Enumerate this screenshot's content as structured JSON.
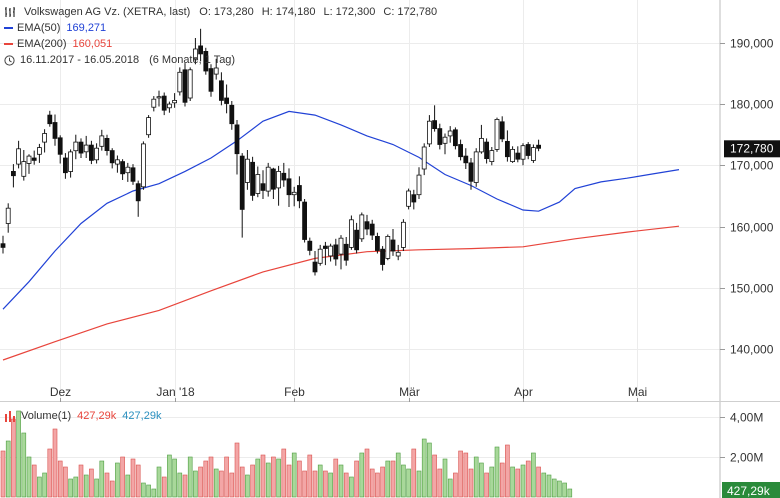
{
  "chart_data": {
    "type": "candlestick",
    "title": "Volkswagen AG Vz. (XETRA, last)",
    "ohlc_summary": {
      "O_label": "O:",
      "O": "173,280",
      "H_label": "H:",
      "H": "174,180",
      "L_label": "L:",
      "L": "172,300",
      "C_label": "C:",
      "C": "172,780"
    },
    "period": "16.11.2017 - 16.05.2018",
    "period_note": "(6 Monate, 1 Tag)",
    "last_price_label": "172,780",
    "ylim": [
      132,
      197
    ],
    "y_ticks": [
      {
        "value": 140,
        "label": "140,000"
      },
      {
        "value": 150,
        "label": "150,000"
      },
      {
        "value": 160,
        "label": "160,000"
      },
      {
        "value": 170,
        "label": "170,000"
      },
      {
        "value": 180,
        "label": "180,000"
      },
      {
        "value": 190,
        "label": "190,000"
      }
    ],
    "x_ticks": [
      {
        "index": 11,
        "label": "Dez"
      },
      {
        "index": 33,
        "label": "Jan '18"
      },
      {
        "index": 56,
        "label": "Feb"
      },
      {
        "index": 78,
        "label": "Mär"
      },
      {
        "index": 100,
        "label": "Apr"
      },
      {
        "index": 122,
        "label": "Mai"
      }
    ],
    "ema50": {
      "name": "EMA(50)",
      "last": "169,271",
      "color": "#2142d6",
      "points": [
        [
          0,
          146.5
        ],
        [
          5,
          151
        ],
        [
          10,
          156
        ],
        [
          15,
          160.5
        ],
        [
          20,
          163.8
        ],
        [
          25,
          165.8
        ],
        [
          30,
          167
        ],
        [
          35,
          169
        ],
        [
          40,
          171.2
        ],
        [
          45,
          174
        ],
        [
          50,
          177.2
        ],
        [
          55,
          178.8
        ],
        [
          60,
          178.2
        ],
        [
          65,
          176.6
        ],
        [
          70,
          174.8
        ],
        [
          75,
          173.4
        ],
        [
          80,
          171.3
        ],
        [
          85,
          168.5
        ],
        [
          90,
          166.7
        ],
        [
          95,
          164.5
        ],
        [
          100,
          162.7
        ],
        [
          103,
          162.5
        ],
        [
          107,
          164
        ],
        [
          110,
          166.2
        ],
        [
          115,
          167.3
        ],
        [
          120,
          167.9
        ],
        [
          125,
          168.6
        ],
        [
          130,
          169.3
        ]
      ]
    },
    "ema200": {
      "name": "EMA(200)",
      "last": "160,051",
      "color": "#e8453c",
      "points": [
        [
          0,
          138.2
        ],
        [
          10,
          141.2
        ],
        [
          20,
          144.1
        ],
        [
          30,
          146.3
        ],
        [
          40,
          149.5
        ],
        [
          50,
          152.6
        ],
        [
          60,
          154.8
        ],
        [
          70,
          155.9
        ],
        [
          80,
          156.2
        ],
        [
          90,
          156.4
        ],
        [
          100,
          156.7
        ],
        [
          110,
          158
        ],
        [
          120,
          159.1
        ],
        [
          130,
          160.05
        ]
      ]
    },
    "candles": [
      {
        "o": 157.2,
        "h": 158.5,
        "l": 155.6,
        "c": 156.6
      },
      {
        "o": 160.5,
        "h": 163.8,
        "l": 159.0,
        "c": 163.0
      },
      {
        "o": 169.0,
        "h": 170.2,
        "l": 166.4,
        "c": 168.3
      },
      {
        "o": 170.2,
        "h": 174.0,
        "l": 169.5,
        "c": 172.7
      },
      {
        "o": 168.2,
        "h": 172.5,
        "l": 167.5,
        "c": 170.6
      },
      {
        "o": 170.3,
        "h": 171.8,
        "l": 168.6,
        "c": 171.5
      },
      {
        "o": 171.2,
        "h": 172.4,
        "l": 170.1,
        "c": 170.8
      },
      {
        "o": 171.8,
        "h": 173.5,
        "l": 170.4,
        "c": 172.9
      },
      {
        "o": 173.8,
        "h": 175.9,
        "l": 172.1,
        "c": 175.2
      },
      {
        "o": 178.2,
        "h": 178.9,
        "l": 176.3,
        "c": 176.8
      },
      {
        "o": 177.0,
        "h": 178.3,
        "l": 173.2,
        "c": 174.4
      },
      {
        "o": 174.5,
        "h": 174.9,
        "l": 170.3,
        "c": 171.8
      },
      {
        "o": 171.2,
        "h": 172.0,
        "l": 167.8,
        "c": 168.8
      },
      {
        "o": 169.0,
        "h": 172.6,
        "l": 168.0,
        "c": 172.2
      },
      {
        "o": 172.4,
        "h": 175.0,
        "l": 171.0,
        "c": 173.8
      },
      {
        "o": 173.8,
        "h": 174.4,
        "l": 171.2,
        "c": 172.0
      },
      {
        "o": 172.2,
        "h": 174.8,
        "l": 171.2,
        "c": 173.3
      },
      {
        "o": 173.3,
        "h": 174.0,
        "l": 170.2,
        "c": 170.8
      },
      {
        "o": 170.9,
        "h": 173.6,
        "l": 170.3,
        "c": 172.8
      },
      {
        "o": 173.1,
        "h": 175.8,
        "l": 172.4,
        "c": 174.8
      },
      {
        "o": 174.4,
        "h": 175.0,
        "l": 171.6,
        "c": 172.4
      },
      {
        "o": 172.4,
        "h": 172.8,
        "l": 169.5,
        "c": 170.4
      },
      {
        "o": 170.2,
        "h": 171.6,
        "l": 168.8,
        "c": 170.9
      },
      {
        "o": 170.6,
        "h": 171.0,
        "l": 167.6,
        "c": 168.6
      },
      {
        "o": 168.8,
        "h": 170.4,
        "l": 167.3,
        "c": 169.7
      },
      {
        "o": 169.6,
        "h": 170.2,
        "l": 166.8,
        "c": 167.4
      },
      {
        "o": 167.0,
        "h": 167.5,
        "l": 161.6,
        "c": 164.2
      },
      {
        "o": 166.5,
        "h": 173.9,
        "l": 166.0,
        "c": 173.5
      },
      {
        "o": 175.0,
        "h": 178.2,
        "l": 174.5,
        "c": 177.8
      },
      {
        "o": 179.5,
        "h": 181.3,
        "l": 178.8,
        "c": 180.8
      },
      {
        "o": 181.0,
        "h": 182.2,
        "l": 179.6,
        "c": 181.2
      },
      {
        "o": 181.3,
        "h": 181.9,
        "l": 178.2,
        "c": 179.0
      },
      {
        "o": 179.4,
        "h": 180.4,
        "l": 178.6,
        "c": 180.0
      },
      {
        "o": 180.2,
        "h": 181.8,
        "l": 179.4,
        "c": 180.6
      },
      {
        "o": 182.0,
        "h": 186.0,
        "l": 181.4,
        "c": 185.2
      },
      {
        "o": 185.6,
        "h": 186.7,
        "l": 179.6,
        "c": 180.3
      },
      {
        "o": 181.0,
        "h": 186.0,
        "l": 180.5,
        "c": 185.6
      },
      {
        "o": 187.4,
        "h": 190.8,
        "l": 186.5,
        "c": 189.0
      },
      {
        "o": 189.5,
        "h": 192.3,
        "l": 187.0,
        "c": 188.2
      },
      {
        "o": 188.6,
        "h": 189.2,
        "l": 184.8,
        "c": 185.4
      },
      {
        "o": 185.8,
        "h": 186.5,
        "l": 181.2,
        "c": 182.1
      },
      {
        "o": 184.9,
        "h": 187.4,
        "l": 184.0,
        "c": 185.9
      },
      {
        "o": 183.8,
        "h": 185.2,
        "l": 179.8,
        "c": 180.6
      },
      {
        "o": 181.0,
        "h": 183.2,
        "l": 178.5,
        "c": 180.1
      },
      {
        "o": 179.8,
        "h": 180.5,
        "l": 175.8,
        "c": 176.8
      },
      {
        "o": 176.6,
        "h": 177.4,
        "l": 168.5,
        "c": 171.9
      },
      {
        "o": 171.5,
        "h": 172.0,
        "l": 158.2,
        "c": 162.8
      },
      {
        "o": 167.2,
        "h": 172.5,
        "l": 166.0,
        "c": 171.0
      },
      {
        "o": 170.5,
        "h": 171.4,
        "l": 164.2,
        "c": 165.1
      },
      {
        "o": 165.4,
        "h": 169.8,
        "l": 164.8,
        "c": 168.5
      },
      {
        "o": 167.0,
        "h": 169.2,
        "l": 164.5,
        "c": 165.9
      },
      {
        "o": 165.8,
        "h": 170.4,
        "l": 164.9,
        "c": 169.7
      },
      {
        "o": 169.4,
        "h": 169.6,
        "l": 164.5,
        "c": 166.1
      },
      {
        "o": 166.3,
        "h": 169.9,
        "l": 163.4,
        "c": 169.0
      },
      {
        "o": 168.7,
        "h": 170.4,
        "l": 166.5,
        "c": 167.6
      },
      {
        "o": 167.8,
        "h": 169.5,
        "l": 163.2,
        "c": 165.2
      },
      {
        "o": 165.2,
        "h": 166.5,
        "l": 163.3,
        "c": 165.6
      },
      {
        "o": 166.7,
        "h": 168.2,
        "l": 163.0,
        "c": 164.2
      },
      {
        "o": 164.0,
        "h": 164.5,
        "l": 157.4,
        "c": 157.9
      },
      {
        "o": 157.6,
        "h": 158.2,
        "l": 155.3,
        "c": 156.1
      },
      {
        "o": 154.2,
        "h": 156.0,
        "l": 152.0,
        "c": 152.6
      },
      {
        "o": 154.0,
        "h": 157.0,
        "l": 153.6,
        "c": 156.3
      },
      {
        "o": 156.8,
        "h": 157.5,
        "l": 153.7,
        "c": 156.4
      },
      {
        "o": 155.2,
        "h": 157.2,
        "l": 154.3,
        "c": 156.8
      },
      {
        "o": 157.0,
        "h": 158.0,
        "l": 153.6,
        "c": 154.7
      },
      {
        "o": 155.5,
        "h": 158.6,
        "l": 153.0,
        "c": 158.1
      },
      {
        "o": 157.1,
        "h": 158.3,
        "l": 153.6,
        "c": 154.5
      },
      {
        "o": 156.6,
        "h": 161.8,
        "l": 156.2,
        "c": 161.1
      },
      {
        "o": 159.4,
        "h": 160.6,
        "l": 155.6,
        "c": 156.2
      },
      {
        "o": 158.0,
        "h": 162.3,
        "l": 157.5,
        "c": 161.9
      },
      {
        "o": 160.8,
        "h": 161.9,
        "l": 158.6,
        "c": 159.6
      },
      {
        "o": 160.4,
        "h": 161.1,
        "l": 157.8,
        "c": 158.6
      },
      {
        "o": 158.4,
        "h": 159.0,
        "l": 155.6,
        "c": 156.1
      },
      {
        "o": 156.3,
        "h": 156.8,
        "l": 152.8,
        "c": 153.8
      },
      {
        "o": 154.8,
        "h": 158.7,
        "l": 154.5,
        "c": 158.4
      },
      {
        "o": 157.8,
        "h": 159.6,
        "l": 155.2,
        "c": 156.0
      },
      {
        "o": 155.2,
        "h": 157.0,
        "l": 154.5,
        "c": 155.8
      },
      {
        "o": 156.6,
        "h": 161.2,
        "l": 156.0,
        "c": 160.7
      },
      {
        "o": 163.3,
        "h": 166.2,
        "l": 162.8,
        "c": 165.8
      },
      {
        "o": 165.2,
        "h": 166.0,
        "l": 162.8,
        "c": 164.0
      },
      {
        "o": 165.2,
        "h": 169.7,
        "l": 164.5,
        "c": 168.4
      },
      {
        "o": 169.4,
        "h": 173.6,
        "l": 168.4,
        "c": 173.0
      },
      {
        "o": 173.5,
        "h": 178.2,
        "l": 173.0,
        "c": 177.2
      },
      {
        "o": 177.3,
        "h": 179.8,
        "l": 175.5,
        "c": 176.0
      },
      {
        "o": 176.0,
        "h": 176.8,
        "l": 172.6,
        "c": 173.4
      },
      {
        "o": 173.6,
        "h": 175.2,
        "l": 171.8,
        "c": 174.6
      },
      {
        "o": 174.8,
        "h": 176.4,
        "l": 173.7,
        "c": 175.6
      },
      {
        "o": 175.8,
        "h": 176.2,
        "l": 172.6,
        "c": 173.2
      },
      {
        "o": 173.4,
        "h": 174.2,
        "l": 170.8,
        "c": 171.4
      },
      {
        "o": 171.5,
        "h": 172.8,
        "l": 169.4,
        "c": 170.4
      },
      {
        "o": 170.4,
        "h": 171.2,
        "l": 166.0,
        "c": 167.4
      },
      {
        "o": 167.2,
        "h": 172.8,
        "l": 166.5,
        "c": 172.2
      },
      {
        "o": 172.2,
        "h": 176.6,
        "l": 171.9,
        "c": 174.4
      },
      {
        "o": 173.8,
        "h": 174.4,
        "l": 170.3,
        "c": 171.1
      },
      {
        "o": 170.6,
        "h": 173.0,
        "l": 170.0,
        "c": 172.4
      },
      {
        "o": 172.6,
        "h": 177.8,
        "l": 172.2,
        "c": 177.5
      },
      {
        "o": 177.1,
        "h": 178.0,
        "l": 173.8,
        "c": 174.3
      },
      {
        "o": 173.9,
        "h": 175.7,
        "l": 170.6,
        "c": 171.4
      },
      {
        "o": 170.6,
        "h": 173.1,
        "l": 170.4,
        "c": 172.6
      },
      {
        "o": 172.0,
        "h": 173.1,
        "l": 170.5,
        "c": 171.0
      },
      {
        "o": 171.0,
        "h": 173.6,
        "l": 170.0,
        "c": 173.2
      },
      {
        "o": 173.4,
        "h": 173.8,
        "l": 171.0,
        "c": 171.6
      },
      {
        "o": 170.8,
        "h": 173.4,
        "l": 170.4,
        "c": 172.9
      },
      {
        "o": 173.28,
        "h": 174.18,
        "l": 172.3,
        "c": 172.78
      }
    ],
    "volume": {
      "title": "Volume(1)",
      "last_red": "427,29k",
      "last_blue": "427,29k",
      "last_label": "427,29k",
      "ylim": [
        0,
        4.6
      ],
      "y_ticks": [
        {
          "value": 2,
          "label": "2,00M"
        },
        {
          "value": 4,
          "label": "4,00M"
        }
      ],
      "values": [
        2.3,
        2.8,
        3.9,
        4.3,
        3.2,
        2.0,
        1.6,
        1.0,
        1.2,
        2.4,
        3.4,
        1.8,
        1.5,
        0.9,
        1.0,
        1.6,
        1.1,
        1.4,
        0.9,
        1.8,
        1.2,
        0.8,
        1.7,
        2.0,
        1.1,
        1.9,
        1.6,
        0.7,
        0.6,
        0.4,
        1.5,
        1.0,
        2.1,
        1.9,
        1.2,
        1.1,
        2.0,
        1.3,
        1.5,
        1.8,
        2.0,
        1.4,
        1.3,
        2.0,
        1.2,
        2.7,
        1.5,
        1.1,
        1.6,
        1.9,
        2.1,
        1.7,
        2.0,
        1.9,
        2.4,
        1.6,
        2.2,
        1.8,
        1.3,
        2.1,
        1.3,
        1.6,
        1.3,
        1.2,
        1.9,
        1.6,
        1.2,
        1.0,
        1.8,
        2.2,
        2.4,
        1.4,
        1.2,
        1.5,
        1.8,
        1.8,
        2.2,
        1.6,
        1.4,
        2.4,
        1.3,
        2.9,
        2.7,
        2.1,
        1.4,
        1.9,
        0.9,
        1.2,
        2.3,
        2.2,
        1.4,
        2.0,
        1.7,
        1.2,
        1.5,
        2.5,
        1.7,
        2.6,
        1.5,
        1.4,
        1.6,
        1.8,
        2.2,
        1.5,
        1.2,
        1.1,
        0.9,
        0.8,
        0.7,
        0.4
      ]
    }
  }
}
